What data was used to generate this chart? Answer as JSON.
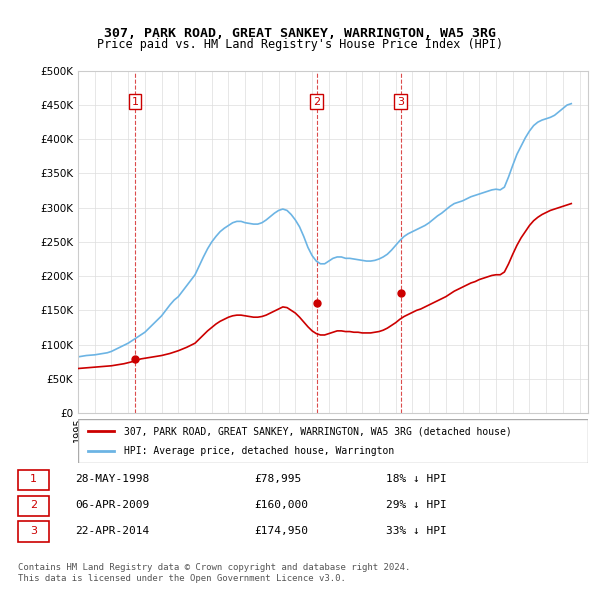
{
  "title": "307, PARK ROAD, GREAT SANKEY, WARRINGTON, WA5 3RG",
  "subtitle": "Price paid vs. HM Land Registry's House Price Index (HPI)",
  "ylabel_ticks": [
    "£0",
    "£50K",
    "£100K",
    "£150K",
    "£200K",
    "£250K",
    "£300K",
    "£350K",
    "£400K",
    "£450K",
    "£500K"
  ],
  "ytick_values": [
    0,
    50000,
    100000,
    150000,
    200000,
    250000,
    300000,
    350000,
    400000,
    450000,
    500000
  ],
  "xmin": 1995.0,
  "xmax": 2025.5,
  "ymin": 0,
  "ymax": 500000,
  "hpi_color": "#6cb4e4",
  "price_color": "#cc0000",
  "sale_marker_color": "#cc0000",
  "vline_color": "#cc0000",
  "grid_color": "#dddddd",
  "background_color": "#ffffff",
  "legend_label_red": "307, PARK ROAD, GREAT SANKEY, WARRINGTON, WA5 3RG (detached house)",
  "legend_label_blue": "HPI: Average price, detached house, Warrington",
  "transactions": [
    {
      "num": 1,
      "date": "28-MAY-1998",
      "price": 78995,
      "pct": "18%",
      "direction": "↓",
      "year": 1998.4
    },
    {
      "num": 2,
      "date": "06-APR-2009",
      "price": 160000,
      "pct": "29%",
      "direction": "↓",
      "year": 2009.27
    },
    {
      "num": 3,
      "date": "22-APR-2014",
      "price": 174950,
      "pct": "33%",
      "direction": "↓",
      "year": 2014.3
    }
  ],
  "footer_text": "Contains HM Land Registry data © Crown copyright and database right 2024.\nThis data is licensed under the Open Government Licence v3.0.",
  "hpi_data_x": [
    1995.0,
    1995.25,
    1995.5,
    1995.75,
    1996.0,
    1996.25,
    1996.5,
    1996.75,
    1997.0,
    1997.25,
    1997.5,
    1997.75,
    1998.0,
    1998.25,
    1998.5,
    1998.75,
    1999.0,
    1999.25,
    1999.5,
    1999.75,
    2000.0,
    2000.25,
    2000.5,
    2000.75,
    2001.0,
    2001.25,
    2001.5,
    2001.75,
    2002.0,
    2002.25,
    2002.5,
    2002.75,
    2003.0,
    2003.25,
    2003.5,
    2003.75,
    2004.0,
    2004.25,
    2004.5,
    2004.75,
    2005.0,
    2005.25,
    2005.5,
    2005.75,
    2006.0,
    2006.25,
    2006.5,
    2006.75,
    2007.0,
    2007.25,
    2007.5,
    2007.75,
    2008.0,
    2008.25,
    2008.5,
    2008.75,
    2009.0,
    2009.25,
    2009.5,
    2009.75,
    2010.0,
    2010.25,
    2010.5,
    2010.75,
    2011.0,
    2011.25,
    2011.5,
    2011.75,
    2012.0,
    2012.25,
    2012.5,
    2012.75,
    2013.0,
    2013.25,
    2013.5,
    2013.75,
    2014.0,
    2014.25,
    2014.5,
    2014.75,
    2015.0,
    2015.25,
    2015.5,
    2015.75,
    2016.0,
    2016.25,
    2016.5,
    2016.75,
    2017.0,
    2017.25,
    2017.5,
    2017.75,
    2018.0,
    2018.25,
    2018.5,
    2018.75,
    2019.0,
    2019.25,
    2019.5,
    2019.75,
    2020.0,
    2020.25,
    2020.5,
    2020.75,
    2021.0,
    2021.25,
    2021.5,
    2021.75,
    2022.0,
    2022.25,
    2022.5,
    2022.75,
    2023.0,
    2023.25,
    2023.5,
    2023.75,
    2024.0,
    2024.25,
    2024.5
  ],
  "hpi_data_y": [
    82000,
    83000,
    84000,
    84500,
    85000,
    86000,
    87000,
    88000,
    90000,
    93000,
    96000,
    99000,
    102000,
    106000,
    110000,
    114000,
    118000,
    124000,
    130000,
    136000,
    142000,
    150000,
    158000,
    165000,
    170000,
    178000,
    186000,
    194000,
    202000,
    215000,
    228000,
    240000,
    250000,
    258000,
    265000,
    270000,
    274000,
    278000,
    280000,
    280000,
    278000,
    277000,
    276000,
    276000,
    278000,
    282000,
    287000,
    292000,
    296000,
    298000,
    296000,
    290000,
    282000,
    272000,
    258000,
    242000,
    230000,
    222000,
    218000,
    218000,
    222000,
    226000,
    228000,
    228000,
    226000,
    226000,
    225000,
    224000,
    223000,
    222000,
    222000,
    223000,
    225000,
    228000,
    232000,
    238000,
    245000,
    252000,
    258000,
    262000,
    265000,
    268000,
    271000,
    274000,
    278000,
    283000,
    288000,
    292000,
    297000,
    302000,
    306000,
    308000,
    310000,
    313000,
    316000,
    318000,
    320000,
    322000,
    324000,
    326000,
    327000,
    326000,
    330000,
    345000,
    362000,
    378000,
    390000,
    402000,
    412000,
    420000,
    425000,
    428000,
    430000,
    432000,
    435000,
    440000,
    445000,
    450000,
    452000
  ],
  "price_data_x": [
    1995.0,
    1995.25,
    1995.5,
    1995.75,
    1996.0,
    1996.25,
    1996.5,
    1996.75,
    1997.0,
    1997.25,
    1997.5,
    1997.75,
    1998.0,
    1998.25,
    1998.5,
    1998.75,
    1999.0,
    1999.25,
    1999.5,
    1999.75,
    2000.0,
    2000.25,
    2000.5,
    2000.75,
    2001.0,
    2001.25,
    2001.5,
    2001.75,
    2002.0,
    2002.25,
    2002.5,
    2002.75,
    2003.0,
    2003.25,
    2003.5,
    2003.75,
    2004.0,
    2004.25,
    2004.5,
    2004.75,
    2005.0,
    2005.25,
    2005.5,
    2005.75,
    2006.0,
    2006.25,
    2006.5,
    2006.75,
    2007.0,
    2007.25,
    2007.5,
    2007.75,
    2008.0,
    2008.25,
    2008.5,
    2008.75,
    2009.0,
    2009.25,
    2009.5,
    2009.75,
    2010.0,
    2010.25,
    2010.5,
    2010.75,
    2011.0,
    2011.25,
    2011.5,
    2011.75,
    2012.0,
    2012.25,
    2012.5,
    2012.75,
    2013.0,
    2013.25,
    2013.5,
    2013.75,
    2014.0,
    2014.25,
    2014.5,
    2014.75,
    2015.0,
    2015.25,
    2015.5,
    2015.75,
    2016.0,
    2016.25,
    2016.5,
    2016.75,
    2017.0,
    2017.25,
    2017.5,
    2017.75,
    2018.0,
    2018.25,
    2018.5,
    2018.75,
    2019.0,
    2019.25,
    2019.5,
    2019.75,
    2020.0,
    2020.25,
    2020.5,
    2020.75,
    2021.0,
    2021.25,
    2021.5,
    2021.75,
    2022.0,
    2022.25,
    2022.5,
    2022.75,
    2023.0,
    2023.25,
    2023.5,
    2023.75,
    2024.0,
    2024.25,
    2024.5
  ],
  "price_data_y": [
    65000,
    65500,
    66000,
    66500,
    67000,
    67500,
    68000,
    68500,
    69000,
    70000,
    71000,
    72000,
    73500,
    75000,
    77000,
    79000,
    80000,
    81000,
    82000,
    83000,
    84000,
    85500,
    87000,
    89000,
    91000,
    93500,
    96000,
    99000,
    102000,
    108000,
    114000,
    120000,
    125000,
    130000,
    134000,
    137000,
    140000,
    142000,
    143000,
    143000,
    142000,
    141000,
    140000,
    140000,
    141000,
    143000,
    146000,
    149000,
    152000,
    155000,
    154000,
    150000,
    146000,
    140000,
    133000,
    126000,
    120000,
    116000,
    114000,
    114000,
    116000,
    118000,
    120000,
    120000,
    119000,
    119000,
    118000,
    118000,
    117000,
    117000,
    117000,
    118000,
    119000,
    121000,
    124000,
    128000,
    132000,
    137000,
    141000,
    144000,
    147000,
    150000,
    152000,
    155000,
    158000,
    161000,
    164000,
    167000,
    170000,
    174000,
    178000,
    181000,
    184000,
    187000,
    190000,
    192000,
    195000,
    197000,
    199000,
    201000,
    202000,
    202000,
    206000,
    218000,
    232000,
    245000,
    256000,
    265000,
    274000,
    281000,
    286000,
    290000,
    293000,
    296000,
    298000,
    300000,
    302000,
    304000,
    306000
  ]
}
